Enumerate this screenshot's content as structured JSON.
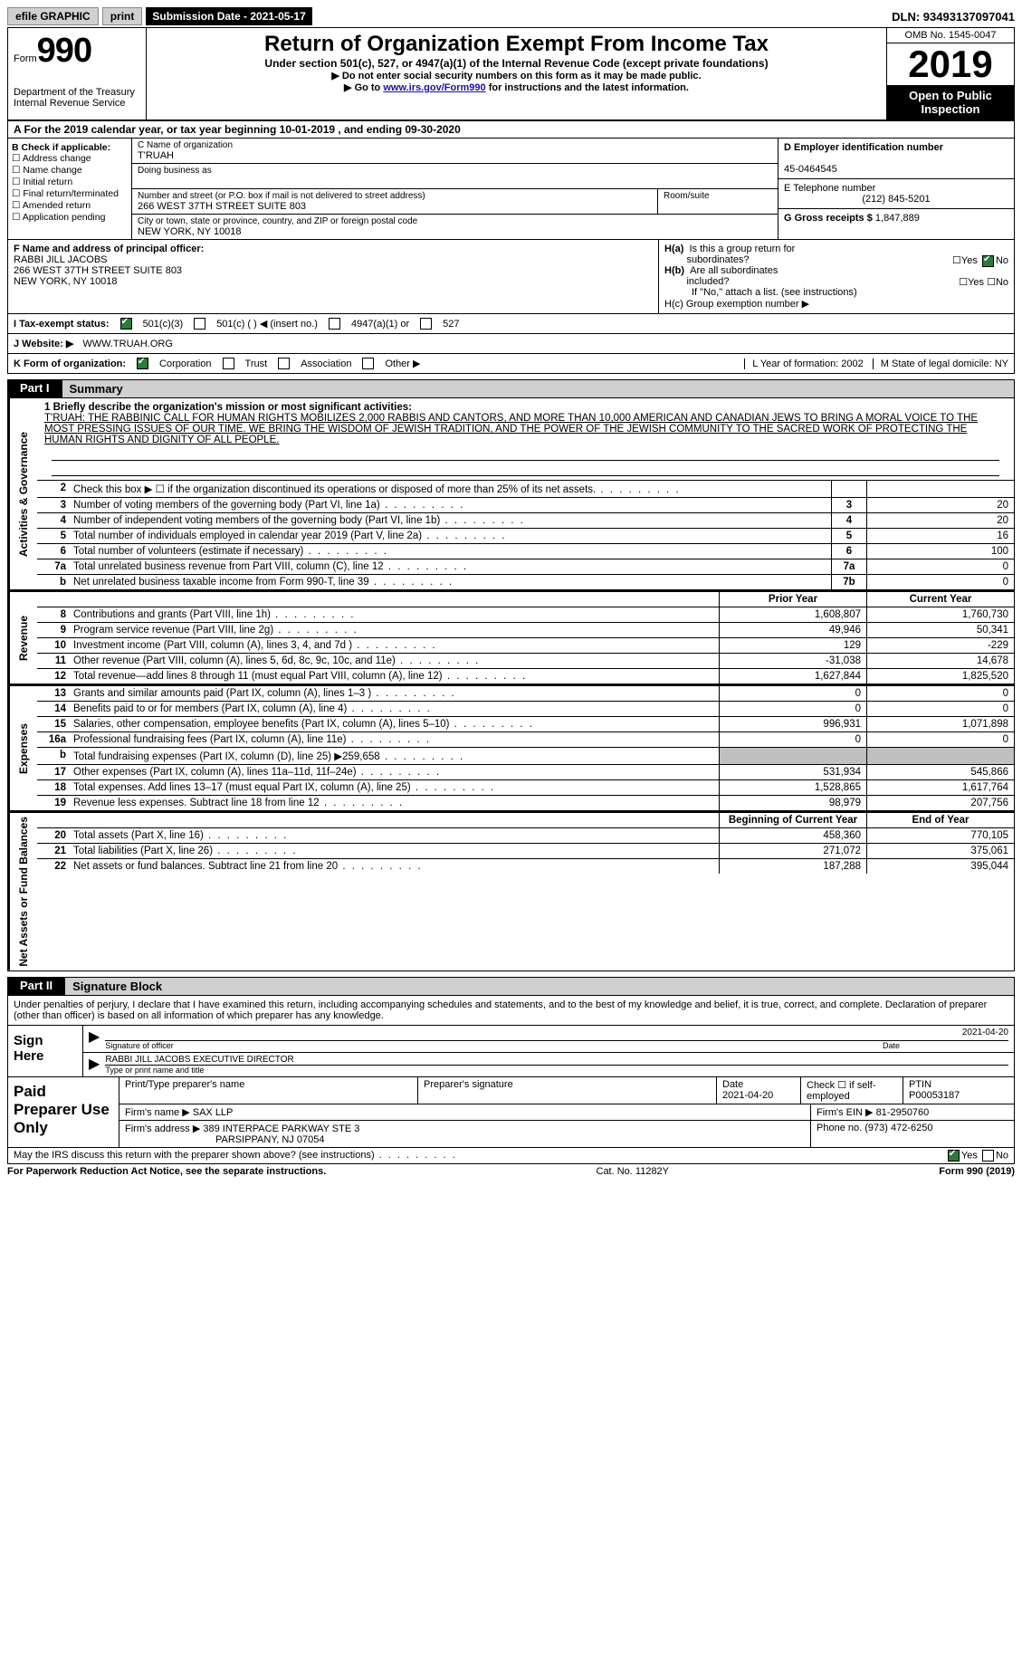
{
  "topbar": {
    "efile": "efile GRAPHIC",
    "print": "print",
    "submission": "Submission Date - 2021-05-17",
    "dln": "DLN: 93493137097041"
  },
  "header": {
    "form_prefix": "Form",
    "form_no": "990",
    "dept1": "Department of the Treasury",
    "dept2": "Internal Revenue Service",
    "title": "Return of Organization Exempt From Income Tax",
    "sub": "Under section 501(c), 527, or 4947(a)(1) of the Internal Revenue Code (except private foundations)",
    "note1": "▶ Do not enter social security numbers on this form as it may be made public.",
    "note2_pre": "▶ Go to ",
    "note2_link": "www.irs.gov/Form990",
    "note2_post": " for instructions and the latest information.",
    "omb": "OMB No. 1545-0047",
    "year": "2019",
    "open1": "Open to Public",
    "open2": "Inspection"
  },
  "row_a": "A For the 2019 calendar year, or tax year beginning 10-01-2019   , and ending 09-30-2020",
  "col_b": {
    "title": "B Check if applicable:",
    "items": [
      "Address change",
      "Name change",
      "Initial return",
      "Final return/terminated",
      "Amended return",
      "Application pending"
    ]
  },
  "col_c": {
    "name_lab": "C Name of organization",
    "name_val": "T'RUAH",
    "dba_lab": "Doing business as",
    "street_lab": "Number and street (or P.O. box if mail is not delivered to street address)",
    "street_val": "266 WEST 37TH STREET SUITE 803",
    "room_lab": "Room/suite",
    "city_lab": "City or town, state or province, country, and ZIP or foreign postal code",
    "city_val": "NEW YORK, NY  10018"
  },
  "col_d": {
    "ein_lab": "D Employer identification number",
    "ein_val": "45-0464545",
    "tel_lab": "E Telephone number",
    "tel_val": "(212) 845-5201",
    "gross_lab": "G Gross receipts $",
    "gross_val": "1,847,889"
  },
  "f": {
    "lab": "F Name and address of principal officer:",
    "l1": "RABBI JILL JACOBS",
    "l2": "266 WEST 37TH STREET SUITE 803",
    "l3": "NEW YORK, NY  10018"
  },
  "h": {
    "ha": "H(a)  Is this a group return for subordinates?",
    "hb": "H(b)  Are all subordinates included?",
    "hb_note": "If \"No,\" attach a list. (see instructions)",
    "hc": "H(c)  Group exemption number ▶"
  },
  "row_i": {
    "lab": "I  Tax-exempt status:",
    "o1": "501(c)(3)",
    "o2": "501(c) (  ) ◀ (insert no.)",
    "o3": "4947(a)(1) or",
    "o4": "527"
  },
  "row_j": {
    "lab": "J  Website: ▶",
    "val": "WWW.TRUAH.ORG"
  },
  "row_k": {
    "lab": "K Form of organization:",
    "o1": "Corporation",
    "o2": "Trust",
    "o3": "Association",
    "o4": "Other ▶"
  },
  "row_lm": {
    "l": "L Year of formation: 2002",
    "m": "M State of legal domicile: NY"
  },
  "part1": {
    "tab": "Part I",
    "title": "Summary"
  },
  "mission": {
    "lab": "1  Briefly describe the organization's mission or most significant activities:",
    "text": "T'RUAH: THE RABBINIC CALL FOR HUMAN RIGHTS MOBILIZES 2,000 RABBIS AND CANTORS, AND MORE THAN 10,000 AMERICAN AND CANADIAN JEWS TO BRING A MORAL VOICE TO THE MOST PRESSING ISSUES OF OUR TIME. WE BRING THE WISDOM OF JEWISH TRADITION, AND THE POWER OF THE JEWISH COMMUNITY TO THE SACRED WORK OF PROTECTING THE HUMAN RIGHTS AND DIGNITY OF ALL PEOPLE."
  },
  "gov_lines": [
    {
      "n": "2",
      "d": "Check this box ▶ ☐  if the organization discontinued its operations or disposed of more than 25% of its net assets.",
      "bn": "",
      "bv": ""
    },
    {
      "n": "3",
      "d": "Number of voting members of the governing body (Part VI, line 1a)",
      "bn": "3",
      "bv": "20"
    },
    {
      "n": "4",
      "d": "Number of independent voting members of the governing body (Part VI, line 1b)",
      "bn": "4",
      "bv": "20"
    },
    {
      "n": "5",
      "d": "Total number of individuals employed in calendar year 2019 (Part V, line 2a)",
      "bn": "5",
      "bv": "16"
    },
    {
      "n": "6",
      "d": "Total number of volunteers (estimate if necessary)",
      "bn": "6",
      "bv": "100"
    },
    {
      "n": "7a",
      "d": "Total unrelated business revenue from Part VIII, column (C), line 12",
      "bn": "7a",
      "bv": "0"
    },
    {
      "n": "b",
      "d": "Net unrelated business taxable income from Form 990-T, line 39",
      "bn": "7b",
      "bv": "0"
    }
  ],
  "rev_hdr": {
    "c1": "Prior Year",
    "c2": "Current Year"
  },
  "rev_lines": [
    {
      "n": "8",
      "d": "Contributions and grants (Part VIII, line 1h)",
      "v1": "1,608,807",
      "v2": "1,760,730"
    },
    {
      "n": "9",
      "d": "Program service revenue (Part VIII, line 2g)",
      "v1": "49,946",
      "v2": "50,341"
    },
    {
      "n": "10",
      "d": "Investment income (Part VIII, column (A), lines 3, 4, and 7d )",
      "v1": "129",
      "v2": "-229"
    },
    {
      "n": "11",
      "d": "Other revenue (Part VIII, column (A), lines 5, 6d, 8c, 9c, 10c, and 11e)",
      "v1": "-31,038",
      "v2": "14,678"
    },
    {
      "n": "12",
      "d": "Total revenue—add lines 8 through 11 (must equal Part VIII, column (A), line 12)",
      "v1": "1,627,844",
      "v2": "1,825,520"
    }
  ],
  "exp_lines": [
    {
      "n": "13",
      "d": "Grants and similar amounts paid (Part IX, column (A), lines 1–3 )",
      "v1": "0",
      "v2": "0"
    },
    {
      "n": "14",
      "d": "Benefits paid to or for members (Part IX, column (A), line 4)",
      "v1": "0",
      "v2": "0"
    },
    {
      "n": "15",
      "d": "Salaries, other compensation, employee benefits (Part IX, column (A), lines 5–10)",
      "v1": "996,931",
      "v2": "1,071,898"
    },
    {
      "n": "16a",
      "d": "Professional fundraising fees (Part IX, column (A), line 11e)",
      "v1": "0",
      "v2": "0"
    },
    {
      "n": "b",
      "d": "Total fundraising expenses (Part IX, column (D), line 25) ▶259,658",
      "v1": "",
      "v2": "",
      "shaded": true
    },
    {
      "n": "17",
      "d": "Other expenses (Part IX, column (A), lines 11a–11d, 11f–24e)",
      "v1": "531,934",
      "v2": "545,866"
    },
    {
      "n": "18",
      "d": "Total expenses. Add lines 13–17 (must equal Part IX, column (A), line 25)",
      "v1": "1,528,865",
      "v2": "1,617,764"
    },
    {
      "n": "19",
      "d": "Revenue less expenses. Subtract line 18 from line 12",
      "v1": "98,979",
      "v2": "207,756"
    }
  ],
  "na_hdr": {
    "c1": "Beginning of Current Year",
    "c2": "End of Year"
  },
  "na_lines": [
    {
      "n": "20",
      "d": "Total assets (Part X, line 16)",
      "v1": "458,360",
      "v2": "770,105"
    },
    {
      "n": "21",
      "d": "Total liabilities (Part X, line 26)",
      "v1": "271,072",
      "v2": "375,061"
    },
    {
      "n": "22",
      "d": "Net assets or fund balances. Subtract line 21 from line 20",
      "v1": "187,288",
      "v2": "395,044"
    }
  ],
  "part2": {
    "tab": "Part II",
    "title": "Signature Block"
  },
  "sig": {
    "perjury": "Under penalties of perjury, I declare that I have examined this return, including accompanying schedules and statements, and to the best of my knowledge and belief, it is true, correct, and complete. Declaration of preparer (other than officer) is based on all information of which preparer has any knowledge.",
    "sign_here": "Sign Here",
    "sig_of": "Signature of officer",
    "date": "2021-04-20",
    "date_lab": "Date",
    "name": "RABBI JILL JACOBS  EXECUTIVE DIRECTOR",
    "name_lab": "Type or print name and title"
  },
  "paid": {
    "lab": "Paid Preparer Use Only",
    "h1": "Print/Type preparer's name",
    "h2": "Preparer's signature",
    "h3": "Date",
    "h3v": "2021-04-20",
    "h4": "Check ☐ if self-employed",
    "h5": "PTIN",
    "h5v": "P00053187",
    "firm_lab": "Firm's name   ▶",
    "firm_val": "SAX LLP",
    "ein_lab": "Firm's EIN ▶",
    "ein_val": "81-2950760",
    "addr_lab": "Firm's address ▶",
    "addr_val1": "389 INTERPACE PARKWAY STE 3",
    "addr_val2": "PARSIPPANY, NJ  07054",
    "phone_lab": "Phone no.",
    "phone_val": "(973) 472-6250"
  },
  "discuss": "May the IRS discuss this return with the preparer shown above? (see instructions)",
  "bottom": {
    "l": "For Paperwork Reduction Act Notice, see the separate instructions.",
    "m": "Cat. No. 11282Y",
    "r": "Form 990 (2019)"
  },
  "labels": {
    "gov": "Activities & Governance",
    "rev": "Revenue",
    "exp": "Expenses",
    "na": "Net Assets or Fund Balances"
  },
  "yes": "Yes",
  "no": "No"
}
